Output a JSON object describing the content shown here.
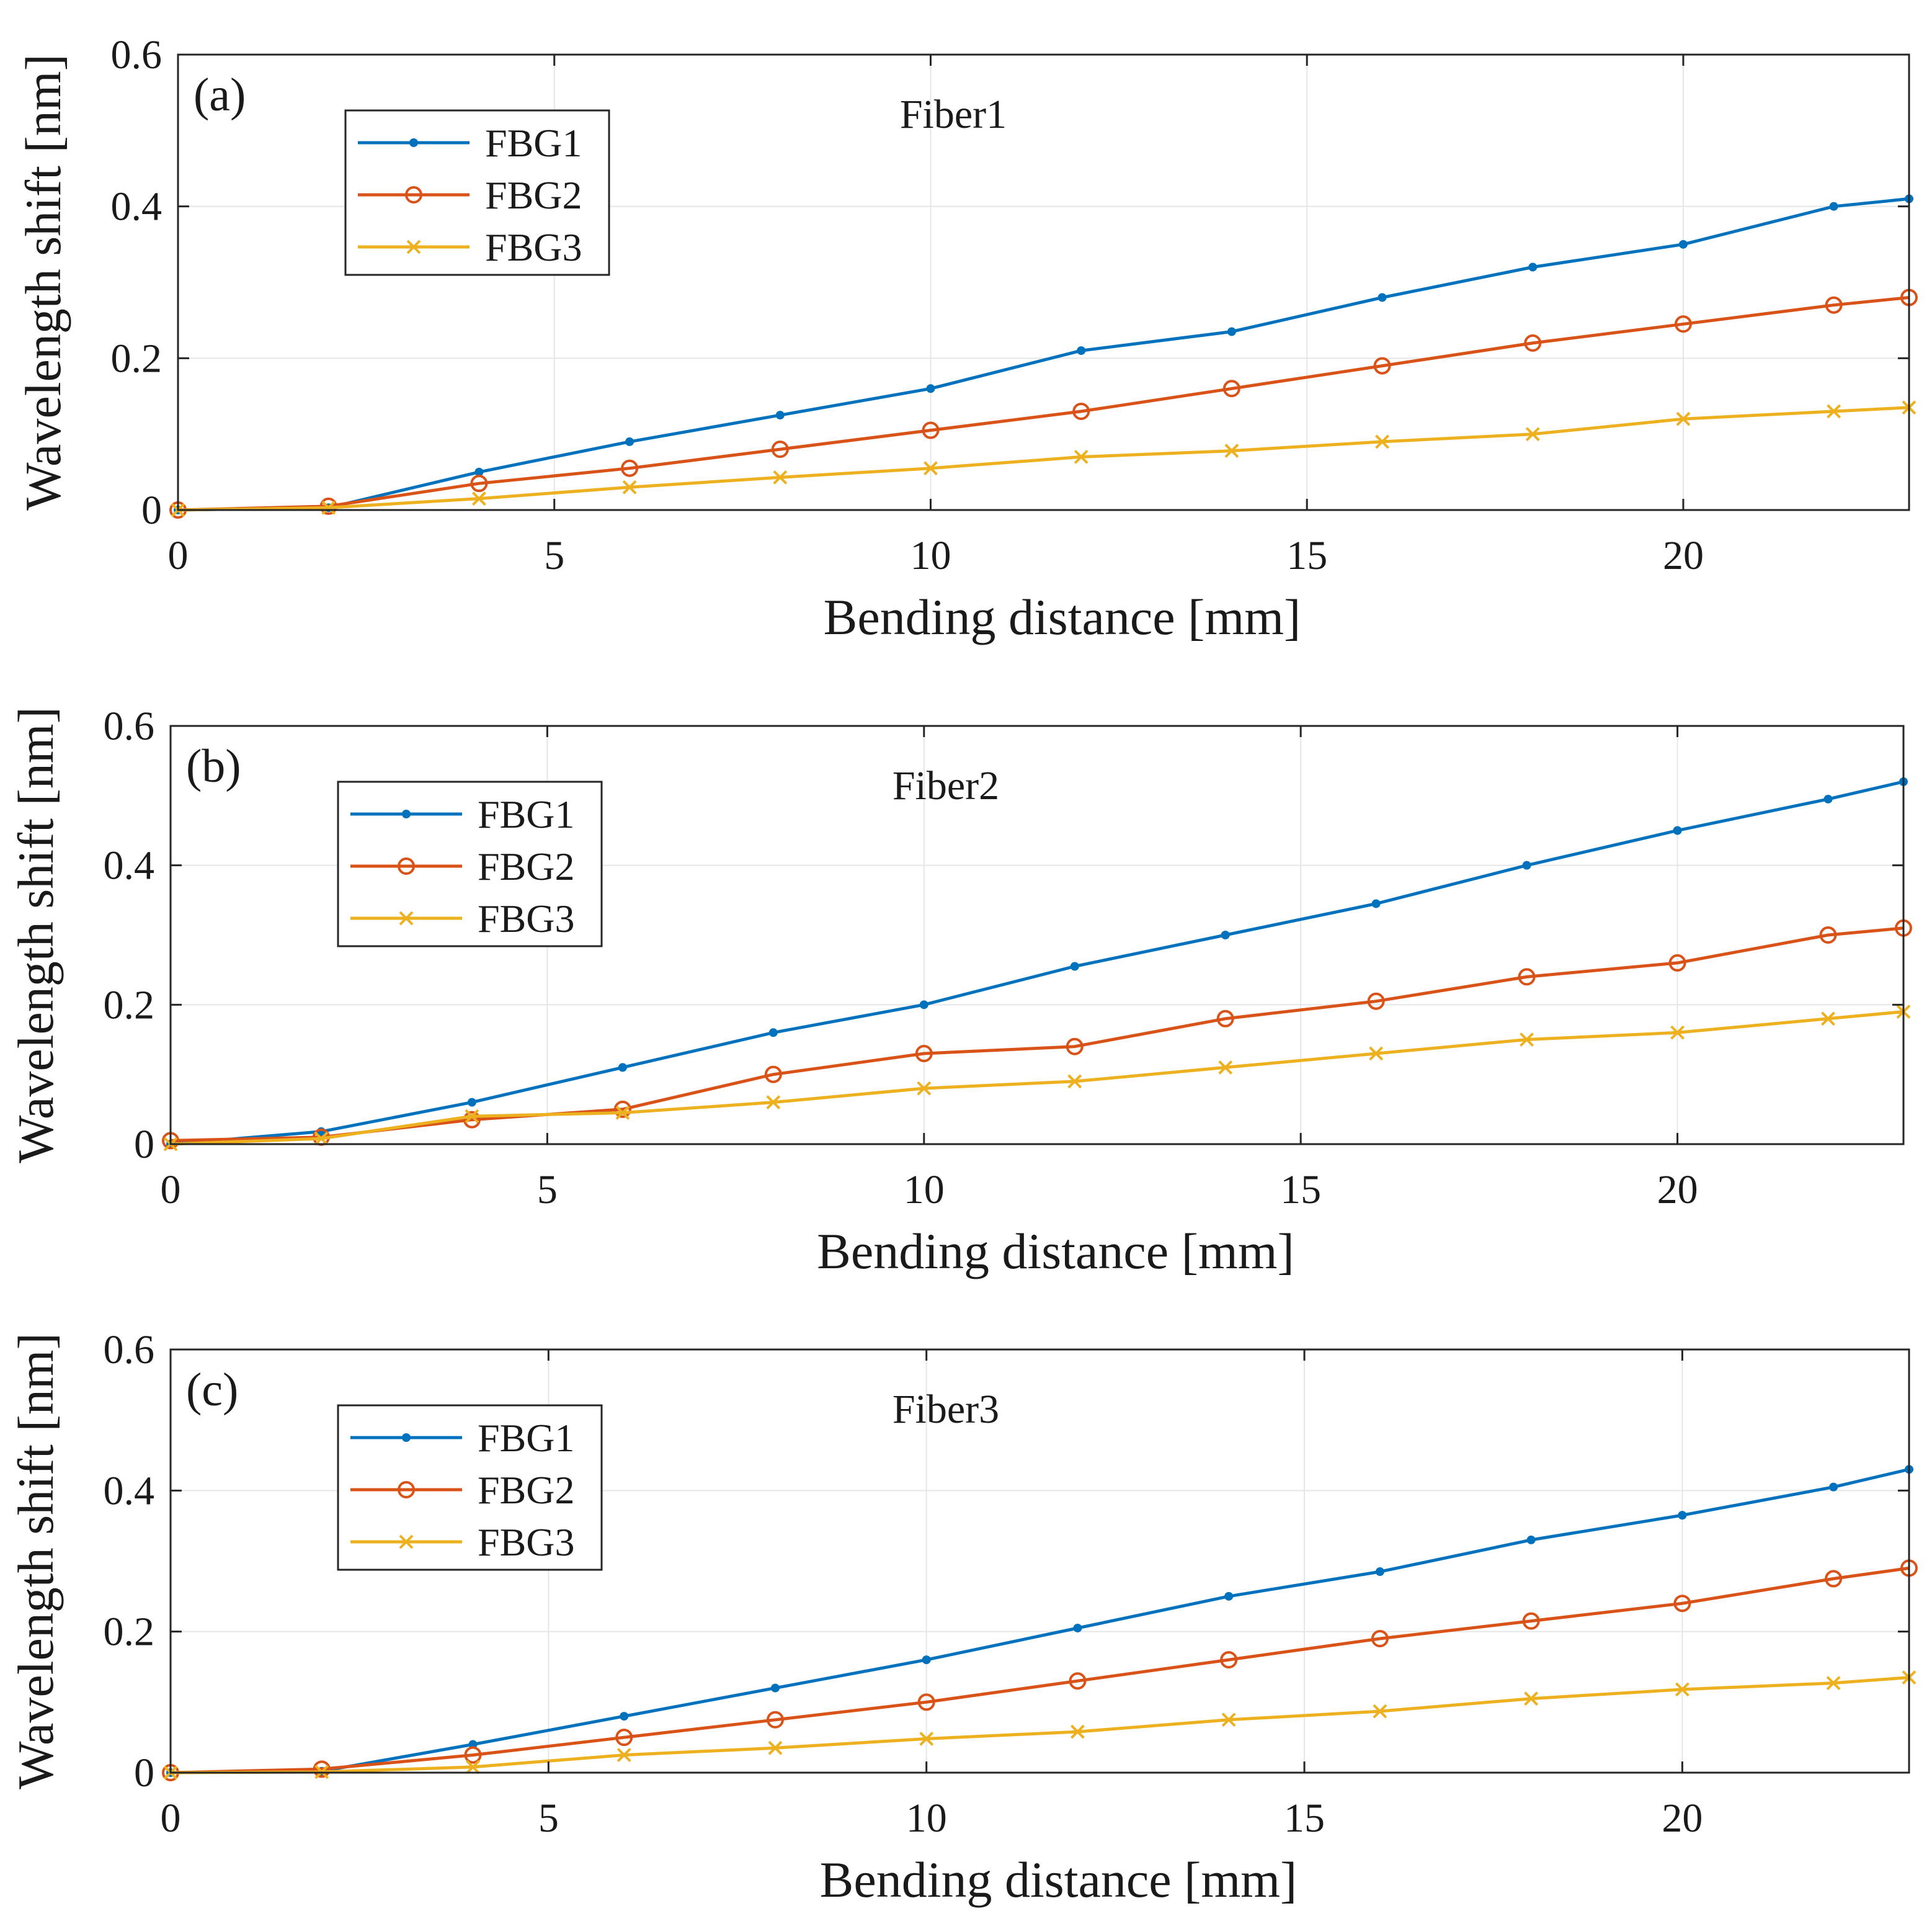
{
  "colors": {
    "FBG1": "#0072BD",
    "FBG2": "#D95319",
    "FBG3": "#EDB120",
    "grid": "#e6e6e6",
    "axis": "#262626"
  },
  "chart_data": [
    {
      "type": "line",
      "panel_label": "(a)",
      "title": "Fiber1",
      "xlabel": "Bending distance [mm]",
      "ylabel": "Wavelength shift [nm]",
      "xlim": [
        0,
        23
      ],
      "ylim": [
        0,
        0.6
      ],
      "xticks": [
        0,
        5,
        10,
        15,
        20
      ],
      "yticks": [
        0,
        0.2,
        0.4,
        0.6
      ],
      "x_tick_labels": [
        "0",
        "5",
        "10",
        "15",
        "20"
      ],
      "y_tick_labels": [
        "0",
        "0.2",
        "0.4",
        "0.6"
      ],
      "grid": true,
      "legend_position": "top-left",
      "x": [
        0,
        2,
        4,
        6,
        8,
        10,
        12,
        14,
        16,
        18,
        20,
        22,
        23
      ],
      "series": [
        {
          "name": "FBG1",
          "marker": "dot",
          "values": [
            0,
            0.003,
            0.05,
            0.09,
            0.125,
            0.16,
            0.21,
            0.235,
            0.28,
            0.32,
            0.35,
            0.4,
            0.41
          ]
        },
        {
          "name": "FBG2",
          "marker": "circle",
          "values": [
            0,
            0.005,
            0.035,
            0.055,
            0.08,
            0.105,
            0.13,
            0.16,
            0.19,
            0.22,
            0.245,
            0.27,
            0.28
          ]
        },
        {
          "name": "FBG3",
          "marker": "x",
          "values": [
            0,
            0.003,
            0.015,
            0.03,
            0.043,
            0.055,
            0.07,
            0.078,
            0.09,
            0.1,
            0.12,
            0.13,
            0.135
          ]
        }
      ]
    },
    {
      "type": "line",
      "panel_label": "(b)",
      "title": "Fiber2",
      "xlabel": "Bending distance [mm]",
      "ylabel": "Wavelength shift [nm]",
      "xlim": [
        0,
        23
      ],
      "ylim": [
        0,
        0.6
      ],
      "xticks": [
        0,
        5,
        10,
        15,
        20
      ],
      "yticks": [
        0,
        0.2,
        0.4,
        0.6
      ],
      "x_tick_labels": [
        "0",
        "5",
        "10",
        "15",
        "20"
      ],
      "y_tick_labels": [
        "0",
        "0.2",
        "0.4",
        "0.6"
      ],
      "grid": true,
      "legend_position": "top-left",
      "x": [
        0,
        2,
        4,
        6,
        8,
        10,
        12,
        14,
        16,
        18,
        20,
        22,
        23
      ],
      "series": [
        {
          "name": "FBG1",
          "marker": "dot",
          "values": [
            0,
            0.018,
            0.06,
            0.11,
            0.16,
            0.2,
            0.255,
            0.3,
            0.345,
            0.4,
            0.45,
            0.495,
            0.52
          ]
        },
        {
          "name": "FBG2",
          "marker": "circle",
          "values": [
            0.005,
            0.01,
            0.035,
            0.05,
            0.1,
            0.13,
            0.14,
            0.18,
            0.205,
            0.24,
            0.26,
            0.3,
            0.31
          ]
        },
        {
          "name": "FBG3",
          "marker": "x",
          "values": [
            0,
            0.008,
            0.04,
            0.045,
            0.06,
            0.08,
            0.09,
            0.11,
            0.13,
            0.15,
            0.16,
            0.18,
            0.19
          ]
        }
      ]
    },
    {
      "type": "line",
      "panel_label": "(c)",
      "title": "Fiber3",
      "xlabel": "Bending distance [mm]",
      "ylabel": "Wavelength shift [nm]",
      "xlim": [
        0,
        23
      ],
      "ylim": [
        0,
        0.6
      ],
      "xticks": [
        0,
        5,
        10,
        15,
        20
      ],
      "yticks": [
        0,
        0.2,
        0.4,
        0.6
      ],
      "x_tick_labels": [
        "0",
        "5",
        "10",
        "15",
        "20"
      ],
      "y_tick_labels": [
        "0",
        "0.2",
        "0.4",
        "0.6"
      ],
      "grid": true,
      "legend_position": "top-left",
      "x": [
        0,
        2,
        4,
        6,
        8,
        10,
        12,
        14,
        16,
        18,
        20,
        22,
        23
      ],
      "series": [
        {
          "name": "FBG1",
          "marker": "dot",
          "values": [
            0,
            0.002,
            0.04,
            0.08,
            0.12,
            0.16,
            0.205,
            0.25,
            0.285,
            0.33,
            0.365,
            0.405,
            0.43
          ]
        },
        {
          "name": "FBG2",
          "marker": "circle",
          "values": [
            0,
            0.005,
            0.025,
            0.05,
            0.075,
            0.1,
            0.13,
            0.16,
            0.19,
            0.215,
            0.24,
            0.275,
            0.29
          ]
        },
        {
          "name": "FBG3",
          "marker": "x",
          "values": [
            0,
            0.001,
            0.008,
            0.025,
            0.035,
            0.048,
            0.058,
            0.075,
            0.087,
            0.105,
            0.118,
            0.127,
            0.135
          ]
        }
      ]
    }
  ]
}
